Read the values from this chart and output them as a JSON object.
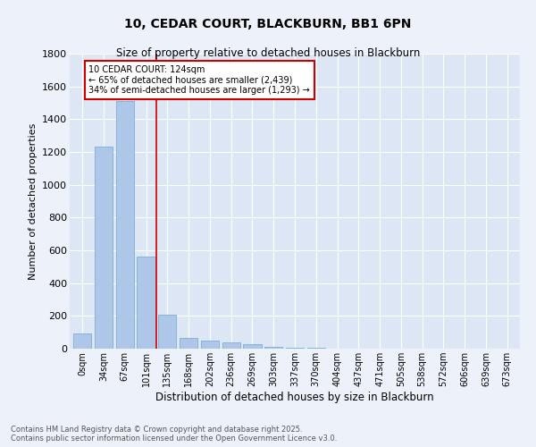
{
  "title": "10, CEDAR COURT, BLACKBURN, BB1 6PN",
  "subtitle": "Size of property relative to detached houses in Blackburn",
  "xlabel": "Distribution of detached houses by size in Blackburn",
  "ylabel": "Number of detached properties",
  "bar_labels": [
    "0sqm",
    "34sqm",
    "67sqm",
    "101sqm",
    "135sqm",
    "168sqm",
    "202sqm",
    "236sqm",
    "269sqm",
    "303sqm",
    "337sqm",
    "370sqm",
    "404sqm",
    "437sqm",
    "471sqm",
    "505sqm",
    "538sqm",
    "572sqm",
    "606sqm",
    "639sqm",
    "673sqm"
  ],
  "bar_values": [
    95,
    1235,
    1510,
    560,
    210,
    65,
    50,
    38,
    30,
    10,
    5,
    3,
    2,
    1,
    1,
    0,
    0,
    0,
    0,
    0,
    0
  ],
  "bar_color": "#aec6e8",
  "bar_edgecolor": "#7aafd4",
  "vline_x": 3.5,
  "vline_color": "#cc0000",
  "annotation_text": "10 CEDAR COURT: 124sqm\n← 65% of detached houses are smaller (2,439)\n34% of semi-detached houses are larger (1,293) →",
  "annotation_box_color": "#ffffff",
  "annotation_box_edge": "#cc0000",
  "ylim": [
    0,
    1800
  ],
  "yticks": [
    0,
    200,
    400,
    600,
    800,
    1000,
    1200,
    1400,
    1600,
    1800
  ],
  "background_color": "#dce6f5",
  "fig_background_color": "#edf2fa",
  "footer_line1": "Contains HM Land Registry data © Crown copyright and database right 2025.",
  "footer_line2": "Contains public sector information licensed under the Open Government Licence v3.0."
}
